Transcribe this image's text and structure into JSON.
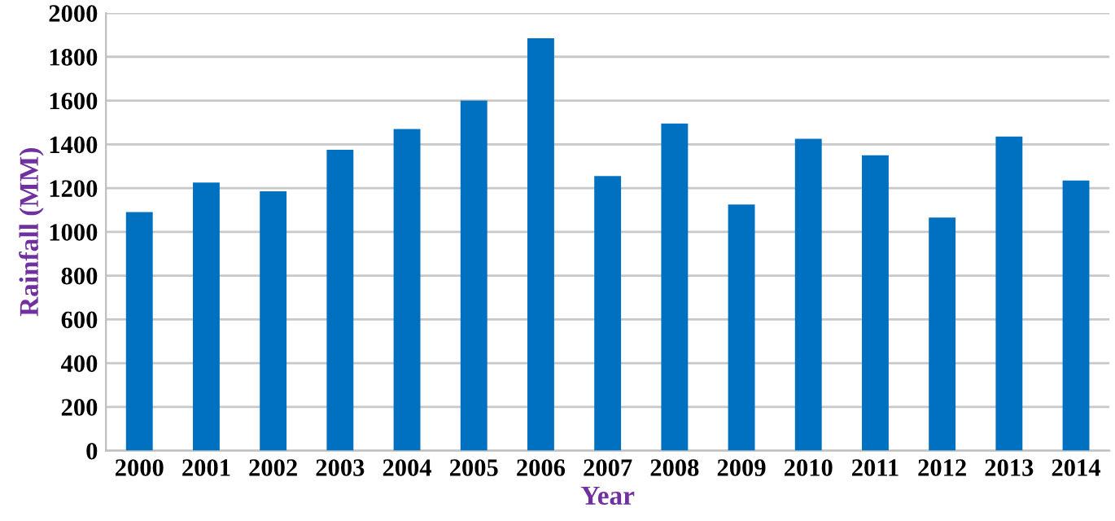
{
  "chart_data": {
    "type": "bar",
    "xlabel": "Year",
    "ylabel": "Rainfall (MM)",
    "categories": [
      "2000",
      "2001",
      "2002",
      "2003",
      "2004",
      "2005",
      "2006",
      "2007",
      "2008",
      "2009",
      "2010",
      "2011",
      "2012",
      "2013",
      "2014"
    ],
    "values": [
      1090,
      1225,
      1185,
      1375,
      1470,
      1600,
      1885,
      1255,
      1495,
      1125,
      1425,
      1350,
      1065,
      1435,
      1235
    ],
    "color": "#0070c0",
    "ylim": [
      0,
      2000
    ],
    "yticks": [
      0,
      200,
      400,
      600,
      800,
      1000,
      1200,
      1400,
      1600,
      1800,
      2000
    ],
    "grid": "y"
  }
}
